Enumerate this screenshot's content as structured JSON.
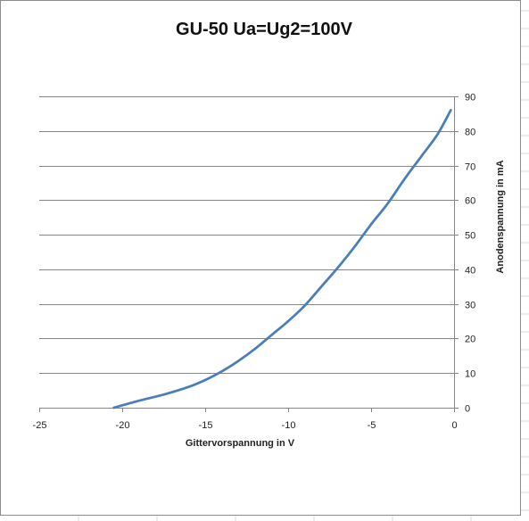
{
  "colors": {
    "series_line": "#4a7ebb",
    "gridline": "#858585",
    "axis": "#858585",
    "sheet_grid": "#d9d9d9"
  },
  "chart_data": {
    "type": "line",
    "title": "GU-50 Ua=Ug2=100V",
    "xlabel": "Gittervorspannung in V",
    "ylabel": "Anodenspannung in mA",
    "xlim": [
      -25,
      0
    ],
    "ylim": [
      0,
      90
    ],
    "x_ticks": [
      -25,
      -20,
      -15,
      -10,
      -5,
      0
    ],
    "y_ticks": [
      0,
      10,
      20,
      30,
      40,
      50,
      60,
      70,
      80,
      90
    ],
    "y_axis_position": "right",
    "grid": "horizontal",
    "legend": "none",
    "series": [
      {
        "x": [
          -20.5,
          -19,
          -17.5,
          -16,
          -15,
          -14,
          -13,
          -12,
          -11,
          -10,
          -9,
          -8,
          -7,
          -6,
          -5,
          -4,
          -3,
          -2,
          -1,
          -0.2
        ],
        "y": [
          0,
          2,
          3.8,
          6,
          8,
          10.5,
          13.5,
          17,
          21,
          25,
          29.5,
          35,
          40.5,
          46.5,
          53,
          59,
          66,
          72.5,
          79,
          86
        ]
      }
    ]
  }
}
